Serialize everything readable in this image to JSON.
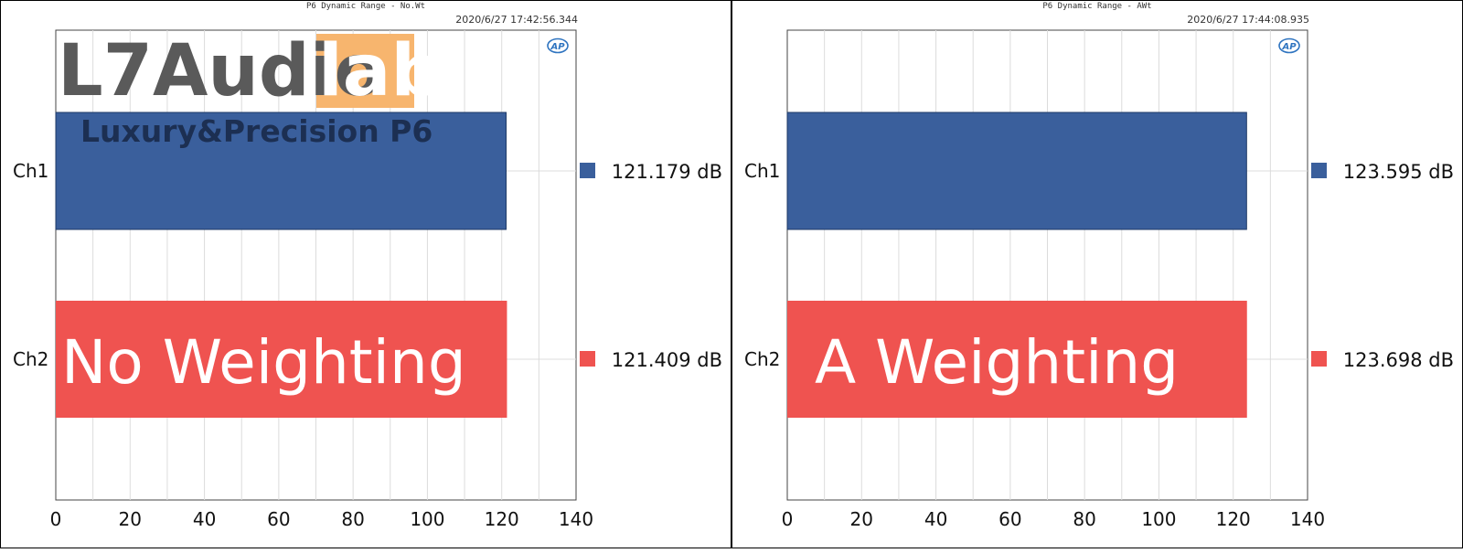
{
  "branding": {
    "logo_text_dark": "L7Audio",
    "logo_text_light": "lab",
    "subtitle": "Luxury&Precision P6",
    "logo_dark_color": "#5a5a5a",
    "logo_light_bg": "#f7b56e"
  },
  "chart_data": [
    {
      "type": "bar",
      "orientation": "horizontal",
      "title": "P6 Dynamic Range - No.Wt",
      "timestamp": "2020/6/27 17:42:56.344",
      "badge": "AP",
      "categories": [
        "Ch1",
        "Ch2"
      ],
      "values": [
        121.179,
        121.409
      ],
      "value_labels": [
        "121.179  dB",
        "121.409  dB"
      ],
      "colors": [
        "#3a5f9c",
        "#ef5350"
      ],
      "xlim": [
        0,
        140
      ],
      "xticks": [
        "0",
        "20",
        "40",
        "60",
        "80",
        "100",
        "120",
        "140"
      ],
      "grid": true,
      "legend": "right",
      "overlay_text": "No Weighting"
    },
    {
      "type": "bar",
      "orientation": "horizontal",
      "title": "P6 Dynamic Range - AWt",
      "timestamp": "2020/6/27 17:44:08.935",
      "badge": "AP",
      "categories": [
        "Ch1",
        "Ch2"
      ],
      "values": [
        123.595,
        123.698
      ],
      "value_labels": [
        "123.595  dB",
        "123.698  dB"
      ],
      "colors": [
        "#3a5f9c",
        "#ef5350"
      ],
      "xlim": [
        0,
        140
      ],
      "xticks": [
        "0",
        "20",
        "40",
        "60",
        "80",
        "100",
        "120",
        "140"
      ],
      "grid": true,
      "legend": "right",
      "overlay_text": "A Weighting"
    }
  ]
}
